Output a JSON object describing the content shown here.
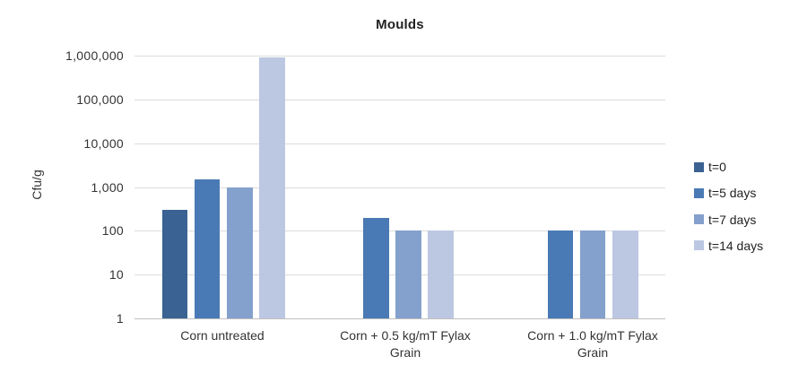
{
  "chart_data": {
    "type": "bar",
    "title": "Moulds",
    "ylabel": "Cfu/g",
    "y_scale": "log",
    "ylim": [
      1,
      1000000
    ],
    "y_tick_labels": [
      "1",
      "10",
      "100",
      "1,000",
      "10,000",
      "100,000",
      "1,000,000"
    ],
    "grid": true,
    "legend_position": "right",
    "categories": [
      "Corn untreated",
      "Corn + 0.5 kg/mT Fylax Grain",
      "Corn + 1.0 kg/mT Fylax Grain"
    ],
    "series": [
      {
        "name": "t=0",
        "color": "#3A6292",
        "values": [
          300,
          1,
          1
        ]
      },
      {
        "name": "t=5 days",
        "color": "#4A7AB5",
        "values": [
          1500,
          200,
          100
        ]
      },
      {
        "name": "t=7 days",
        "color": "#84A0CC",
        "values": [
          1000,
          100,
          100
        ]
      },
      {
        "name": "t=14 days",
        "color": "#BCC7E2",
        "values": [
          900000,
          100,
          100
        ]
      }
    ],
    "colors": {
      "grid": "#DCDCDC",
      "axis": "#BFBFBF",
      "text": "#333333"
    }
  }
}
